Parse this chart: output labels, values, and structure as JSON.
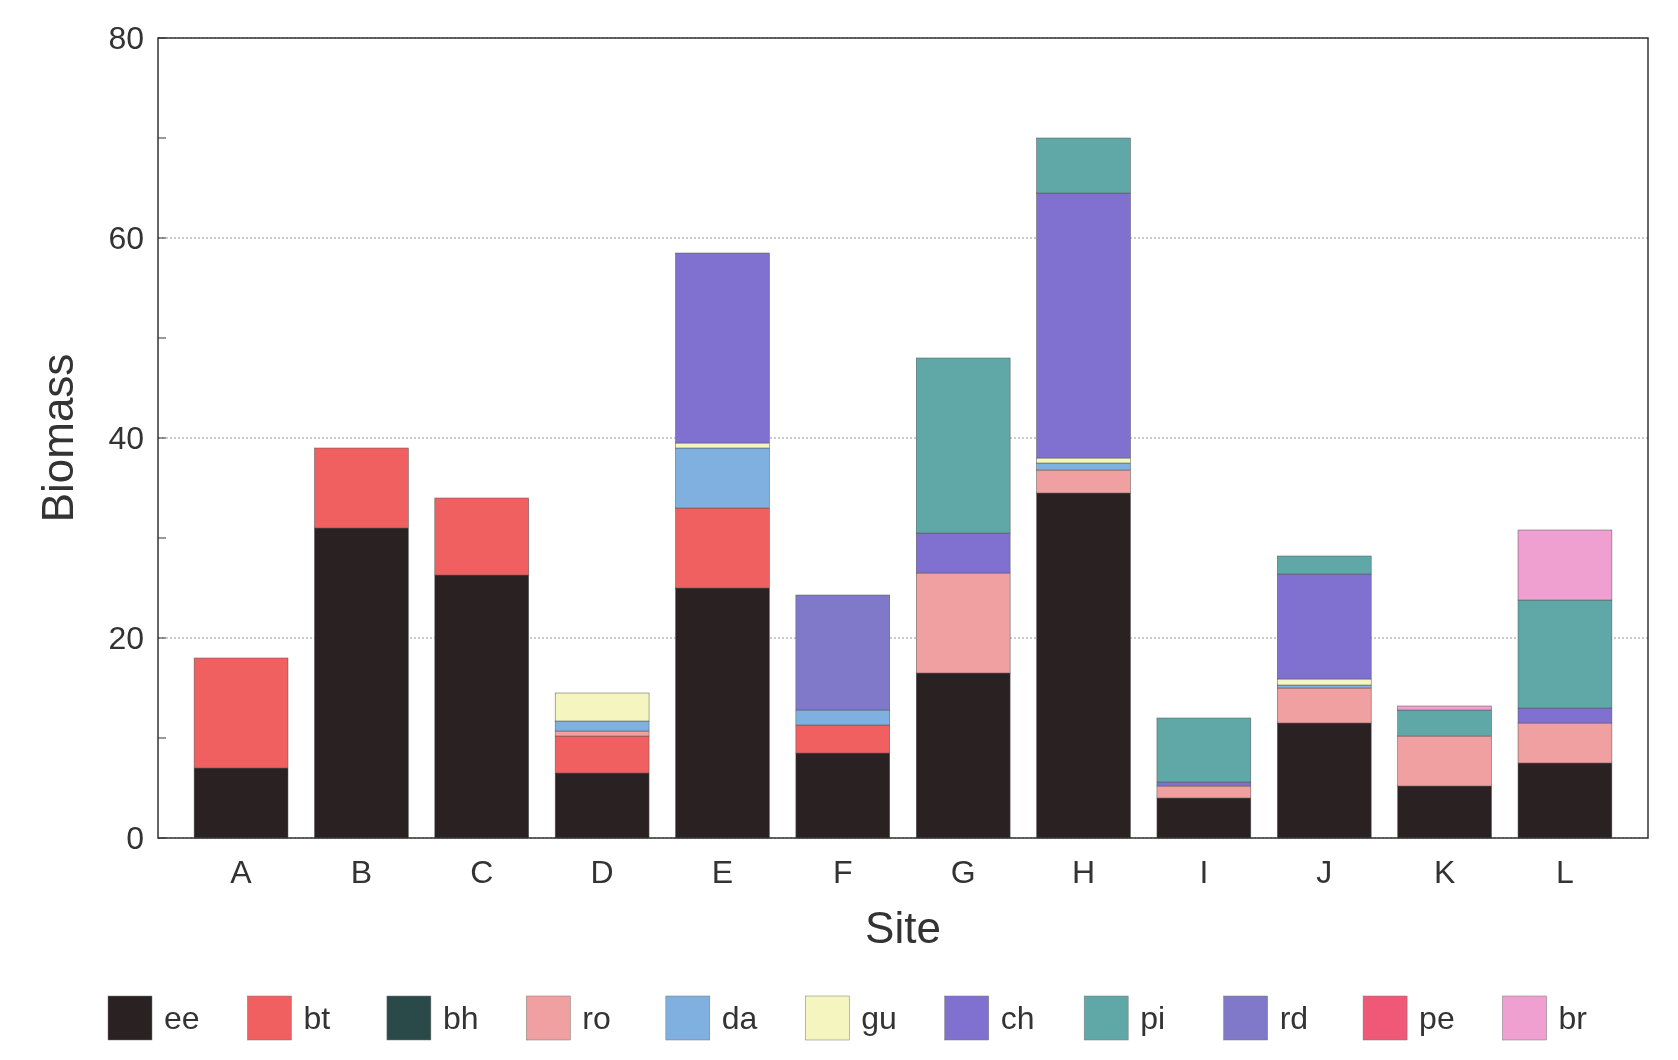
{
  "chart_data": {
    "type": "bar",
    "stacked": true,
    "xlabel": "Site",
    "ylabel": "Biomass",
    "categories": [
      "A",
      "B",
      "C",
      "D",
      "E",
      "F",
      "G",
      "H",
      "I",
      "J",
      "K",
      "L"
    ],
    "ylim": [
      0,
      80
    ],
    "yticks": [
      0,
      {
        "value": 10,
        "label": null
      },
      20,
      {
        "value": 30,
        "label": null
      },
      40,
      {
        "value": 50,
        "label": null
      },
      60,
      {
        "value": 70,
        "label": null
      },
      80
    ],
    "grid": "y",
    "legend": "bottom",
    "series": [
      {
        "name": "ee",
        "color": "#2a2222",
        "values": [
          7,
          31,
          26.3,
          6.5,
          25,
          8.5,
          16.5,
          34.5,
          4,
          11.5,
          5.2,
          7.5
        ]
      },
      {
        "name": "bt",
        "color": "#f06060",
        "values": [
          11,
          8,
          7.7,
          3.7,
          8,
          2.8,
          0,
          0,
          0,
          0,
          0,
          0
        ]
      },
      {
        "name": "bh",
        "color": "#2a4a4a",
        "values": [
          0,
          0,
          0,
          0,
          0,
          0,
          0,
          0,
          0,
          0,
          0,
          0
        ]
      },
      {
        "name": "ro",
        "color": "#f0a0a0",
        "values": [
          0,
          0,
          0,
          0.5,
          0,
          0,
          10,
          2.3,
          1.2,
          3.5,
          5,
          4
        ]
      },
      {
        "name": "da",
        "color": "#80b0e0",
        "values": [
          0,
          0,
          0,
          1,
          6,
          1.5,
          0,
          0.7,
          0,
          0.3,
          0,
          0
        ]
      },
      {
        "name": "gu",
        "color": "#f5f5c0",
        "values": [
          0,
          0,
          0,
          2.8,
          0.5,
          0,
          0,
          0.5,
          0,
          0.6,
          0,
          0
        ]
      },
      {
        "name": "ch",
        "color": "#8070d0",
        "values": [
          0,
          0,
          0,
          0,
          19,
          0,
          4,
          26.5,
          0.4,
          10.5,
          0,
          1.5
        ]
      },
      {
        "name": "pi",
        "color": "#60a8a8",
        "values": [
          0,
          0,
          0,
          0,
          0,
          0,
          17.5,
          5.5,
          6.4,
          1.8,
          2.6,
          10.8
        ]
      },
      {
        "name": "rd",
        "color": "#8078c8",
        "values": [
          0,
          0,
          0,
          0,
          0,
          11.5,
          0,
          0,
          0,
          0,
          0,
          0
        ]
      },
      {
        "name": "pe",
        "color": "#f05878",
        "values": [
          0,
          0,
          0,
          0,
          0,
          0,
          0,
          0,
          0,
          0,
          0,
          0
        ]
      },
      {
        "name": "br",
        "color": "#f0a0d0",
        "values": [
          0,
          0,
          0,
          0,
          0,
          0,
          0,
          0,
          0,
          0,
          0.4,
          7
        ]
      }
    ]
  }
}
